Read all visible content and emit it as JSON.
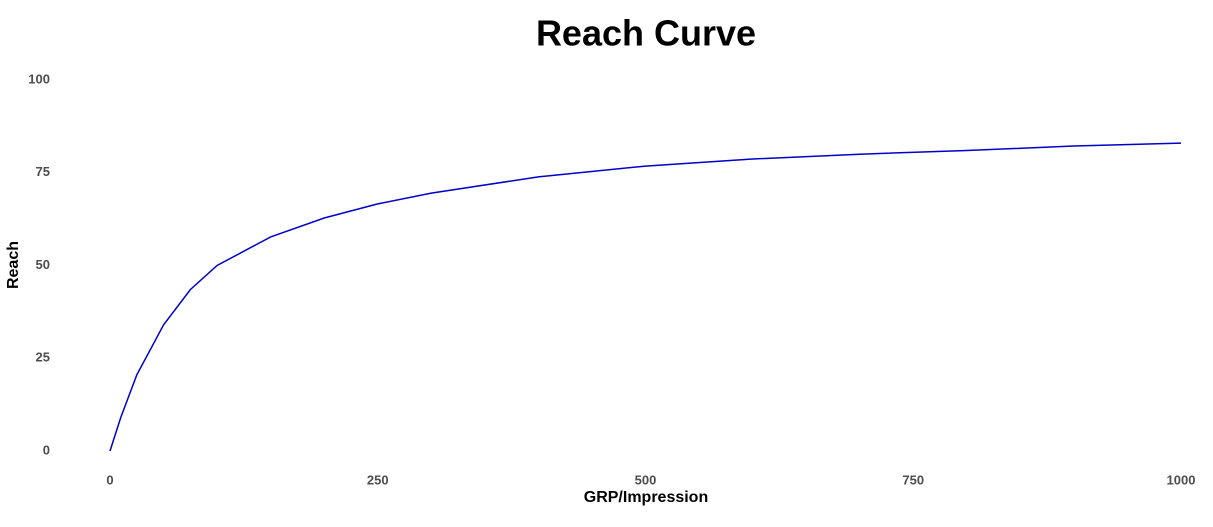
{
  "chart_data": {
    "type": "line",
    "title": "Reach Curve",
    "x_label": "GRP/Impression",
    "y_label": "Reach",
    "x": [
      0,
      10,
      25,
      50,
      75,
      100,
      150,
      200,
      250,
      300,
      400,
      500,
      600,
      700,
      800,
      900,
      1000
    ],
    "series": [
      {
        "name": "Reach",
        "color": "#0000cc",
        "values": [
          0,
          9,
          20.5,
          34,
          43.5,
          50,
          57.7,
          62.8,
          66.6,
          69.5,
          73.9,
          76.8,
          78.7,
          80,
          81,
          82.2,
          83
        ]
      }
    ],
    "xlim": [
      0,
      1000
    ],
    "xticks": [
      0,
      250,
      500,
      750,
      1000
    ],
    "ylim": [
      0,
      100
    ],
    "yticks": [
      0,
      25,
      50,
      75,
      100
    ],
    "grid": false
  }
}
